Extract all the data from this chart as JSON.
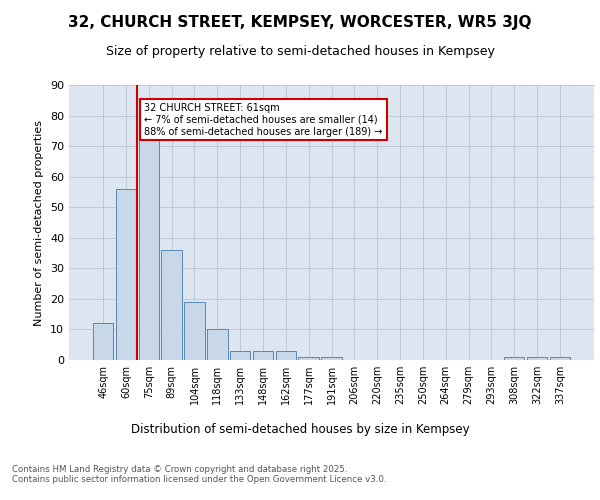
{
  "title": "32, CHURCH STREET, KEMPSEY, WORCESTER, WR5 3JQ",
  "subtitle": "Size of property relative to semi-detached houses in Kempsey",
  "xlabel": "Distribution of semi-detached houses by size in Kempsey",
  "ylabel": "Number of semi-detached properties",
  "categories": [
    "46sqm",
    "60sqm",
    "75sqm",
    "89sqm",
    "104sqm",
    "118sqm",
    "133sqm",
    "148sqm",
    "162sqm",
    "177sqm",
    "191sqm",
    "206sqm",
    "220sqm",
    "235sqm",
    "250sqm",
    "264sqm",
    "279sqm",
    "293sqm",
    "308sqm",
    "322sqm",
    "337sqm"
  ],
  "values": [
    12,
    56,
    72,
    36,
    19,
    10,
    3,
    3,
    3,
    1,
    1,
    0,
    0,
    0,
    0,
    0,
    0,
    0,
    1,
    1,
    1
  ],
  "bar_color": "#c8d8e8",
  "bar_edge_color": "#5588bb",
  "vline_x_index": 1,
  "vline_color": "#cc0000",
  "annotation_text": "32 CHURCH STREET: 61sqm\n← 7% of semi-detached houses are smaller (14)\n88% of semi-detached houses are larger (189) →",
  "annotation_box_color": "#ffffff",
  "annotation_box_edge_color": "#cc0000",
  "ylim": [
    0,
    90
  ],
  "yticks": [
    0,
    10,
    20,
    30,
    40,
    50,
    60,
    70,
    80,
    90
  ],
  "background_color": "#dde6f0",
  "footer_text": "Contains HM Land Registry data © Crown copyright and database right 2025.\nContains public sector information licensed under the Open Government Licence v3.0.",
  "title_fontsize": 11,
  "subtitle_fontsize": 9,
  "xlabel_fontsize": 8.5,
  "ylabel_fontsize": 8
}
